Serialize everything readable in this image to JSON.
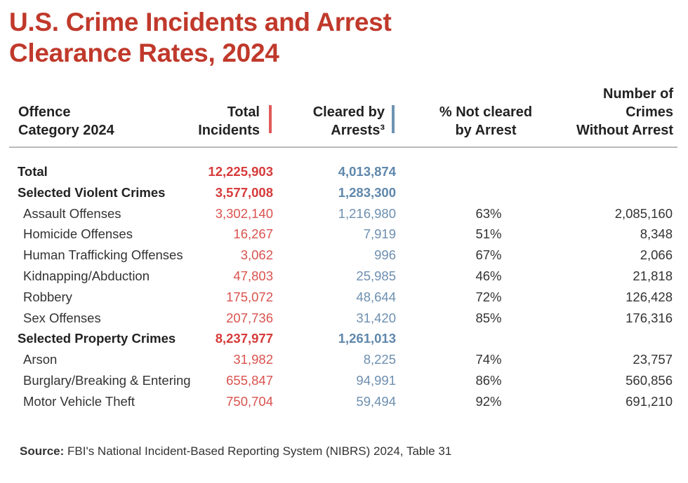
{
  "title": {
    "line1": "U.S. Crime Incidents and Arrest",
    "line2": "Clearance Rates, 2024"
  },
  "colors": {
    "title": "#c0392b",
    "total_accent": "#e05a5a",
    "cleared_accent": "#6d93b3"
  },
  "chart_data": {
    "type": "table",
    "columns": [
      {
        "key": "category",
        "lines": [
          "Offence",
          "Category 2024"
        ]
      },
      {
        "key": "total",
        "lines": [
          "Total",
          "Incidents"
        ]
      },
      {
        "key": "cleared",
        "lines": [
          "Cleared by",
          "Arrests³"
        ]
      },
      {
        "key": "pct_not_cleared",
        "lines": [
          "% Not cleared",
          "by Arrest"
        ]
      },
      {
        "key": "without_arrest",
        "lines": [
          "Number of",
          "Crimes",
          "Without Arrest"
        ]
      }
    ],
    "rows": [
      {
        "category": "Total",
        "total": "12,225,903",
        "cleared": "4,013,874",
        "pct_not_cleared": "",
        "without_arrest": "",
        "bold": true
      },
      {
        "category": "Selected Violent Crimes",
        "total": "3,577,008",
        "cleared": "1,283,300",
        "pct_not_cleared": "",
        "without_arrest": "",
        "bold": true
      },
      {
        "category": "Assault Offenses",
        "total": "3,302,140",
        "cleared": "1,216,980",
        "pct_not_cleared": "63%",
        "without_arrest": "2,085,160",
        "bold": false
      },
      {
        "category": "Homicide Offenses",
        "total": "16,267",
        "cleared": "7,919",
        "pct_not_cleared": "51%",
        "without_arrest": "8,348",
        "bold": false
      },
      {
        "category": "Human Trafficking Offenses",
        "total": "3,062",
        "cleared": "996",
        "pct_not_cleared": "67%",
        "without_arrest": "2,066",
        "bold": false
      },
      {
        "category": "Kidnapping/Abduction",
        "total": "47,803",
        "cleared": "25,985",
        "pct_not_cleared": "46%",
        "without_arrest": "21,818",
        "bold": false
      },
      {
        "category": "Robbery",
        "total": "175,072",
        "cleared": "48,644",
        "pct_not_cleared": "72%",
        "without_arrest": "126,428",
        "bold": false
      },
      {
        "category": "Sex Offenses",
        "total": "207,736",
        "cleared": "31,420",
        "pct_not_cleared": "85%",
        "without_arrest": "176,316",
        "bold": false
      },
      {
        "category": "Selected Property Crimes",
        "total": "8,237,977",
        "cleared": "1,261,013",
        "pct_not_cleared": "",
        "without_arrest": "",
        "bold": true
      },
      {
        "category": "Arson",
        "total": "31,982",
        "cleared": "8,225",
        "pct_not_cleared": "74%",
        "without_arrest": "23,757",
        "bold": false
      },
      {
        "category": "Burglary/Breaking & Entering",
        "total": "655,847",
        "cleared": "94,991",
        "pct_not_cleared": "86%",
        "without_arrest": "560,856",
        "bold": false
      },
      {
        "category": "Motor Vehicle Theft",
        "total": "750,704",
        "cleared": "59,494",
        "pct_not_cleared": "92%",
        "without_arrest": "691,210",
        "bold": false
      }
    ]
  },
  "source": {
    "label": "Source:",
    "text": " FBI's National Incident-Based Reporting System (NIBRS) 2024, Table 31"
  }
}
